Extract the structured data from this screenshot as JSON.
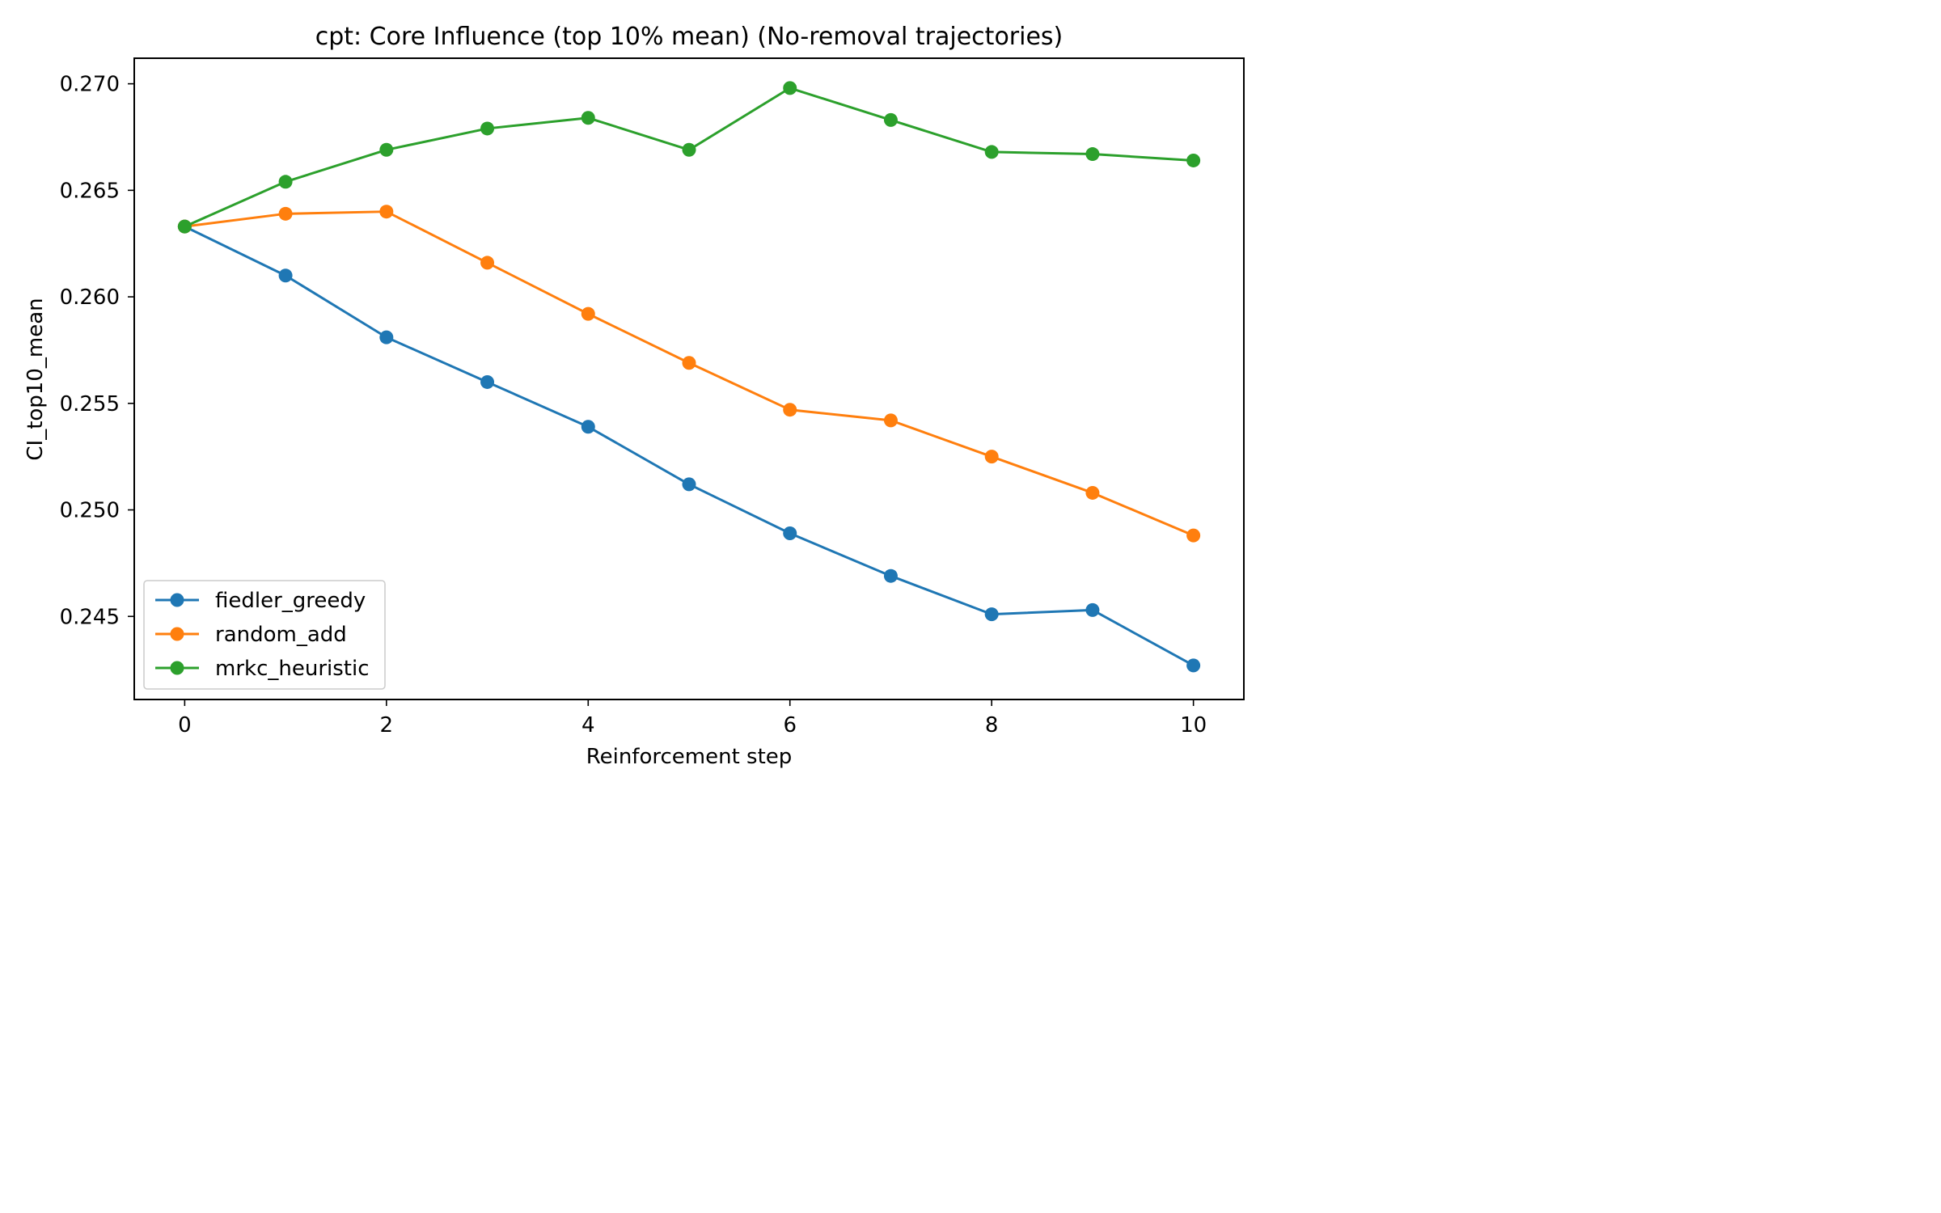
{
  "chart_data": {
    "type": "line",
    "title": "cpt: Core Influence (top 10% mean) (No-removal trajectories)",
    "xlabel": "Reinforcement step",
    "ylabel": "CI_top10_mean",
    "x": [
      0,
      1,
      2,
      3,
      4,
      5,
      6,
      7,
      8,
      9,
      10
    ],
    "xlim": [
      -0.5,
      10.5
    ],
    "ylim": [
      0.2411,
      0.2712
    ],
    "xticks": [
      0,
      2,
      4,
      6,
      8,
      10
    ],
    "yticks": [
      0.245,
      0.25,
      0.255,
      0.26,
      0.265,
      0.27
    ],
    "ytick_labels": [
      "0.245",
      "0.250",
      "0.255",
      "0.260",
      "0.265",
      "0.270"
    ],
    "grid": false,
    "legend_position": "lower-left",
    "series": [
      {
        "name": "fiedler_greedy",
        "color": "#1f77b4",
        "values": [
          0.2633,
          0.261,
          0.2581,
          0.256,
          0.2539,
          0.2512,
          0.2489,
          0.2469,
          0.2451,
          0.2453,
          0.2427
        ]
      },
      {
        "name": "random_add",
        "color": "#ff7f0e",
        "values": [
          0.2633,
          0.2639,
          0.264,
          0.2616,
          0.2592,
          0.2569,
          0.2547,
          0.2542,
          0.2525,
          0.2508,
          0.2488
        ]
      },
      {
        "name": "mrkc_heuristic",
        "color": "#2ca02c",
        "values": [
          0.2633,
          0.2654,
          0.2669,
          0.2679,
          0.2684,
          0.2669,
          0.2698,
          0.2683,
          0.2668,
          0.2667,
          0.2664
        ]
      }
    ]
  }
}
